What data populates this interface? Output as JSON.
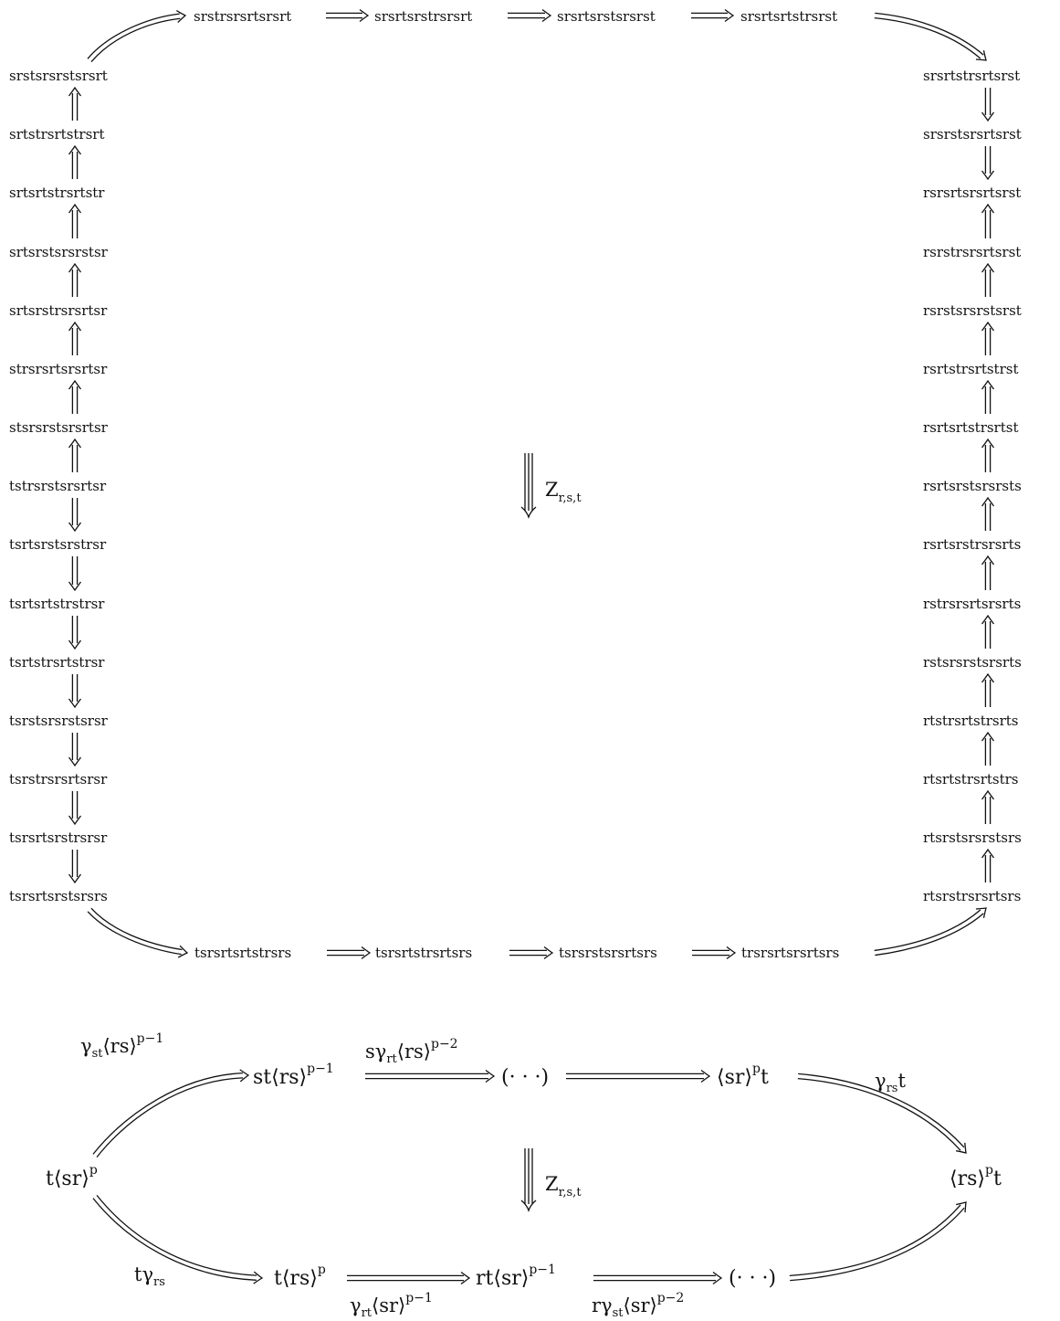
{
  "diagram1": {
    "top_row": [
      "srstrsrsrtsrsrt",
      "srsrtsrstrsrsrt",
      "srsrtsrstsrsrst",
      "srsrtsrtstrsrst"
    ],
    "left_col": [
      "srstsrsrstsrsrt",
      "srtstrsrtstrsrt",
      "srtsrtstrsrtstr",
      "srtsrstsrsrstsr",
      "srtsrstrsrsrtsr",
      "strsrsrtsrsrtsr",
      "stsrsrstsrsrtsr",
      "tstrsrstsrsrtsr",
      "tsrtsrstsrstrsr",
      "tsrtsrtstrstrsr",
      "tsrtstrsrtstrsr",
      "tsrstsrsrstsrsr",
      "tsrstrsrsrtsrsr",
      "tsrsrtsrstrsrsr",
      "tsrsrtsrstsrsrs"
    ],
    "right_col": [
      "srsrtstrsrtsrst",
      "srsrstsrsrtsrst",
      "rsrsrtsrsrtsrst",
      "rsrstrsrsrtsrst",
      "rsrstsrsrstsrst",
      "rsrtstrsrtstrst",
      "rsrtsrtstrsrtst",
      "rsrtsrstsrsrsts",
      "rsrtsrstrsrsrts",
      "rstrsrsrtsrsrts",
      "rstsrsrstsrsrts",
      "rtstrsrtstrsrts",
      "rtsrtstrsrtstrs",
      "rtsrstsrsrstsrs",
      "rtsrstrsrsrtsrs"
    ],
    "bottom_row": [
      "tsrsrtsrtstrsrs",
      "tsrsrtstrsrtsrs",
      "tsrsrstsrsrtsrs",
      "trsrsrtsrsrtsrs"
    ],
    "center_label": "Z",
    "center_label_sub": "r,s,t"
  },
  "diagram2": {
    "left_node": {
      "main": "t⟨sr⟩",
      "sup": "p"
    },
    "right_node": {
      "main": "⟨rs⟩",
      "sup": "p",
      "tail": "t"
    },
    "top_nodes": [
      {
        "main": "st⟨rs⟩",
        "sup": "p−1"
      },
      {
        "main": "(· · ·)"
      },
      {
        "main": "⟨sr⟩",
        "sup": "p",
        "tail": "t"
      }
    ],
    "bottom_nodes": [
      {
        "main": "t⟨rs⟩",
        "sup": "p"
      },
      {
        "main": "rt⟨sr⟩",
        "sup": "p−1"
      },
      {
        "main": "(· · ·)"
      }
    ],
    "labels": {
      "top_left": {
        "a": "γ",
        "sub": "st",
        "b": "⟨rs⟩",
        "sup": "p−1"
      },
      "top_mid": {
        "a": "sγ",
        "sub": "rt",
        "b": "⟨rs⟩",
        "sup": "p−2"
      },
      "top_right": {
        "a": "γ",
        "sub": "rs",
        "b": "t"
      },
      "bottom_left": {
        "a": "tγ",
        "sub": "rs"
      },
      "bottom_mid1": {
        "a": "γ",
        "sub": "rt",
        "b": "⟨sr⟩",
        "sup": "p−1"
      },
      "bottom_mid2": {
        "a": "rγ",
        "sub": "st",
        "b": "⟨sr⟩",
        "sup": "p−2"
      }
    },
    "center_label": "Z",
    "center_label_sub": "r,s,t"
  }
}
